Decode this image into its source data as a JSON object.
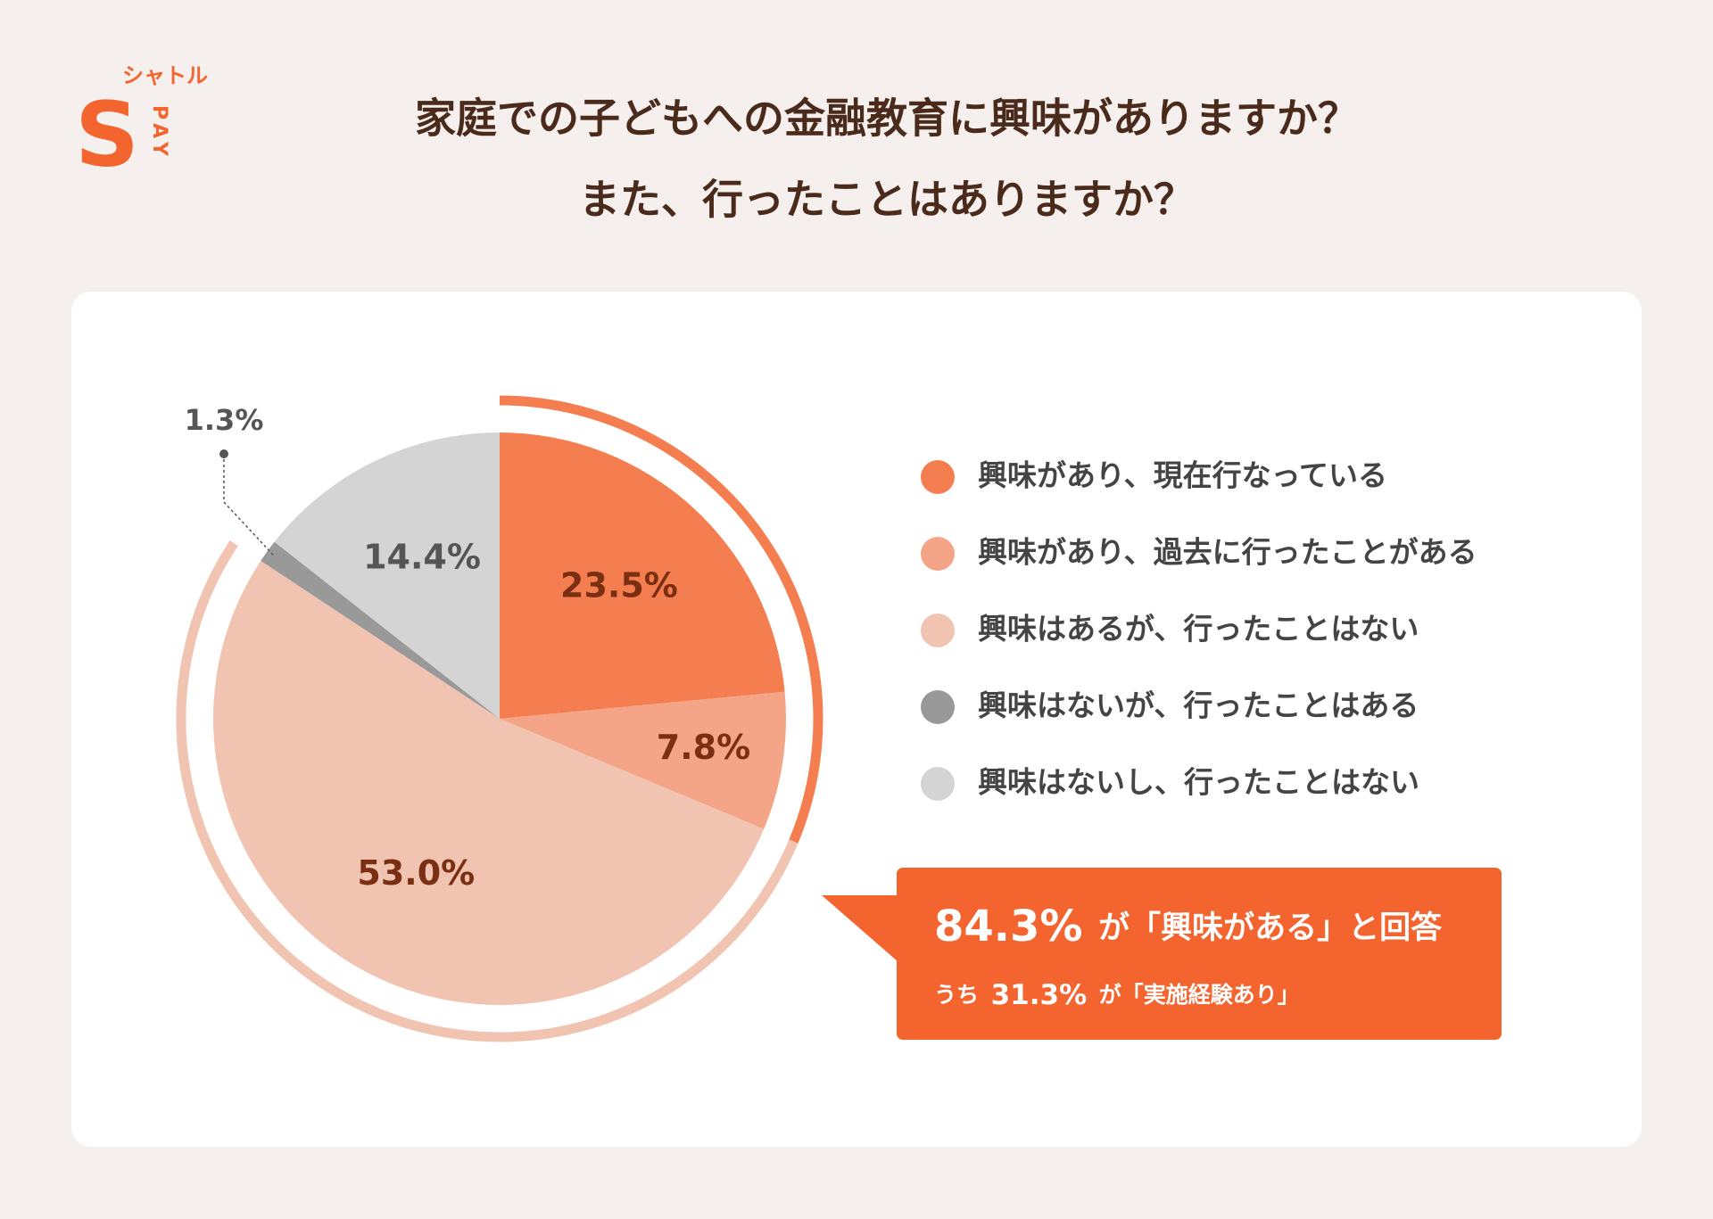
{
  "logo": {
    "name": "シャトル",
    "mark": "S",
    "sub": "PAY"
  },
  "chart_data": {
    "type": "pie",
    "title": [
      "家庭での子どもへの金融教育に興味がありますか？",
      "また、行ったことはありますか？"
    ],
    "categories": [
      "興味があり、現在行なっている",
      "興味があり、過去に行ったことがある",
      "興味はあるが、行ったことはない",
      "興味はないが、行ったことはある",
      "興味はないし、行ったことはない"
    ],
    "values": [
      23.5,
      7.8,
      53,
      1.3,
      14.4
    ],
    "value_labels": [
      "23.5%",
      "7.8%",
      "53.0%",
      "1.3%",
      "14.4%"
    ],
    "colors": [
      "#f47e50",
      "#f4a587",
      "#f1c4b2",
      "#999999",
      "#d4d4d4"
    ],
    "label_colors": [
      "#7a2e12",
      "#7a2e12",
      "#7a2e12",
      "#555555",
      "#555555"
    ],
    "legend": "right",
    "annotation": {
      "headline_value": "84.3%",
      "headline_text": "が「興味がある」と回答",
      "sub_prefix": "うち",
      "sub_value": "31.3%",
      "sub_text": "が「実施経験あり」"
    }
  }
}
